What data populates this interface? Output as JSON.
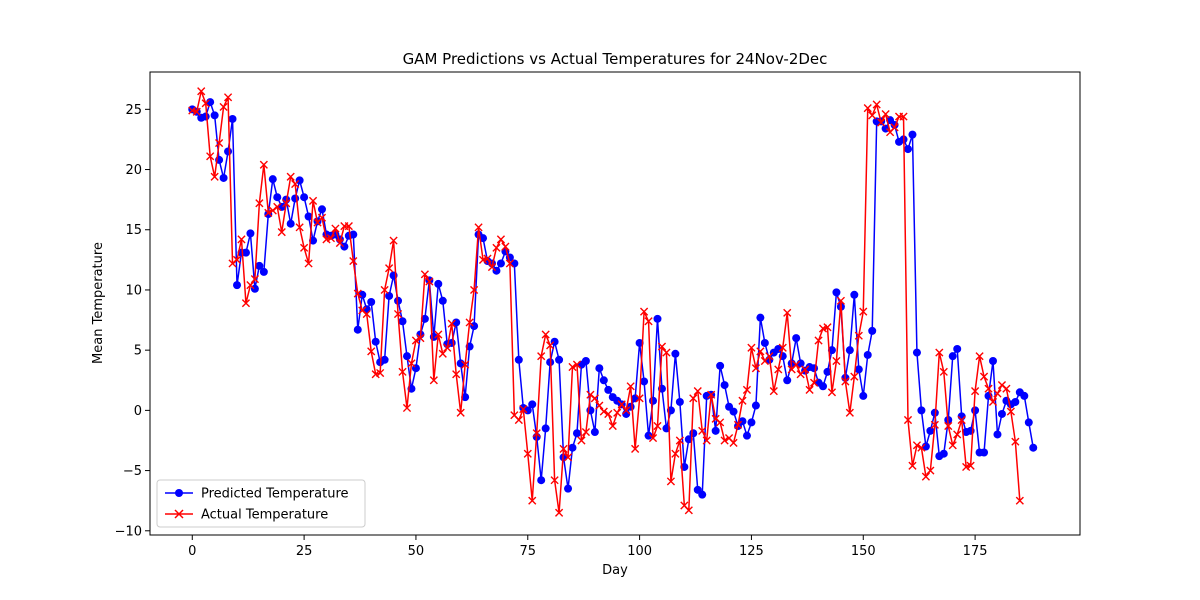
{
  "chart_data": {
    "type": "line",
    "title": "GAM Predictions vs Actual Temperatures for 24Nov-2Dec",
    "xlabel": "Day",
    "ylabel": "Mean Temperature",
    "xlim": [
      -9.45,
      198.45
    ],
    "ylim": [
      -10.35,
      28.1
    ],
    "xticks": [
      0,
      25,
      50,
      75,
      100,
      125,
      150,
      175
    ],
    "yticks": [
      -10,
      -5,
      0,
      5,
      10,
      15,
      20,
      25
    ],
    "grid": false,
    "legend_position": "lower-left",
    "series": [
      {
        "name": "Predicted Temperature",
        "color": "#0000ff",
        "marker": "circle",
        "values": [
          25.0,
          24.8,
          24.3,
          24.4,
          25.6,
          24.5,
          20.8,
          19.3,
          21.5,
          24.2,
          10.4,
          13.1,
          13.1,
          14.7,
          10.1,
          12.0,
          11.5,
          16.3,
          19.2,
          17.7,
          16.9,
          17.5,
          15.5,
          17.6,
          19.1,
          17.7,
          16.1,
          14.1,
          15.7,
          16.7,
          14.6,
          14.5,
          14.6,
          14.2,
          13.6,
          14.5,
          14.6,
          6.7,
          9.6,
          8.4,
          9.0,
          5.7,
          4.0,
          4.2,
          9.5,
          11.2,
          9.1,
          7.4,
          4.5,
          1.8,
          3.5,
          6.3,
          7.6,
          10.8,
          6.1,
          10.5,
          9.1,
          5.5,
          5.6,
          7.3,
          3.9,
          1.1,
          5.3,
          7.0,
          14.6,
          14.3,
          12.4,
          12.2,
          11.6,
          12.2,
          13.2,
          12.7,
          12.2,
          4.2,
          0.2,
          0.0,
          0.5,
          -2.2,
          -5.8,
          -1.5,
          4.0,
          5.7,
          4.2,
          -3.9,
          -6.5,
          -3.1,
          -1.9,
          3.8,
          4.1,
          0.0,
          -1.8,
          3.5,
          2.5,
          1.7,
          1.1,
          0.8,
          0.5,
          -0.3,
          0.3,
          1.0,
          5.6,
          2.4,
          -2.1,
          0.8,
          7.6,
          1.8,
          -1.5,
          0.0,
          4.7,
          0.7,
          -4.7,
          -2.4,
          -1.9,
          -6.6,
          -7.0,
          1.2,
          1.3,
          -1.7,
          3.7,
          2.1,
          0.3,
          -0.1,
          -1.3,
          -0.9,
          -2.1,
          -1.0,
          0.4,
          7.7,
          5.6,
          4.2,
          4.8,
          5.1,
          4.5,
          2.5,
          3.9,
          6.0,
          3.9,
          3.3,
          3.6,
          3.5,
          2.3,
          2.0,
          3.2,
          5.0,
          9.8,
          8.6,
          2.7,
          5.0,
          9.6,
          3.4,
          1.2,
          4.6,
          6.6,
          24.0,
          24.0,
          23.4,
          24.1,
          23.7,
          22.3,
          22.5,
          21.7,
          22.9,
          4.8,
          0.0,
          -3.0,
          -1.7,
          -0.2,
          -3.8,
          -3.6,
          -0.8,
          4.5,
          5.1,
          -0.5,
          -1.8,
          -1.7,
          0.0,
          -3.5,
          -3.5,
          1.2,
          4.1,
          -2.0,
          -0.3,
          0.8,
          0.5,
          0.7,
          1.5,
          1.2,
          -1.0,
          -3.1
        ]
      },
      {
        "name": "Actual Temperature",
        "color": "#ff0000",
        "marker": "x",
        "values": [
          24.9,
          24.8,
          26.5,
          25.5,
          21.1,
          19.4,
          22.2,
          25.2,
          26.0,
          12.2,
          12.5,
          14.2,
          8.9,
          10.4,
          10.9,
          17.2,
          20.4,
          16.4,
          16.6,
          16.9,
          14.8,
          17.2,
          19.4,
          18.8,
          15.2,
          13.5,
          12.2,
          17.4,
          15.6,
          16.0,
          14.2,
          14.3,
          15.1,
          13.9,
          15.3,
          15.3,
          12.4,
          9.7,
          8.3,
          8.0,
          4.9,
          3.0,
          3.1,
          10.0,
          11.8,
          14.1,
          8.0,
          3.2,
          0.2,
          3.9,
          5.8,
          6.0,
          11.3,
          10.7,
          2.5,
          6.3,
          4.7,
          5.2,
          7.2,
          3.0,
          -0.2,
          3.8,
          7.3,
          10.0,
          15.2,
          12.5,
          12.6,
          11.9,
          13.5,
          14.2,
          13.6,
          12.2,
          -0.4,
          -0.8,
          0.1,
          -3.6,
          -7.5,
          -1.9,
          4.5,
          6.3,
          5.4,
          -5.8,
          -8.5,
          -3.2,
          -3.9,
          3.6,
          3.8,
          -2.5,
          -1.8,
          1.3,
          1.0,
          0.4,
          -0.1,
          -0.3,
          -1.3,
          -0.2,
          0.5,
          0.0,
          2.0,
          -3.2,
          1.0,
          8.2,
          7.4,
          -2.3,
          -1.3,
          5.3,
          4.8,
          -5.9,
          -3.6,
          -2.5,
          -7.9,
          -8.3,
          1.0,
          1.6,
          -1.7,
          -2.5,
          1.3,
          -0.7,
          -1.0,
          -2.5,
          -2.3,
          -2.7,
          -1.2,
          0.8,
          1.7,
          5.2,
          3.5,
          4.9,
          4.1,
          4.5,
          1.6,
          3.4,
          5.2,
          8.1,
          3.4,
          3.8,
          3.0,
          3.4,
          1.7,
          2.3,
          5.8,
          6.8,
          6.9,
          1.5,
          4.1,
          9.1,
          2.4,
          -0.2,
          2.8,
          6.2,
          8.2,
          25.1,
          24.5,
          25.4,
          23.9,
          24.6,
          23.1,
          23.5,
          24.4,
          24.4,
          -0.8,
          -4.6,
          -2.9,
          -3.1,
          -5.5,
          -5.0,
          -1.2,
          4.8,
          3.2,
          -1.3,
          -2.9,
          -2.0,
          -0.8,
          -4.7,
          -4.6,
          1.6,
          4.5,
          2.8,
          1.8,
          0.7,
          1.4,
          2.1,
          1.8,
          -0.1,
          -2.6,
          -7.5
        ]
      }
    ]
  }
}
